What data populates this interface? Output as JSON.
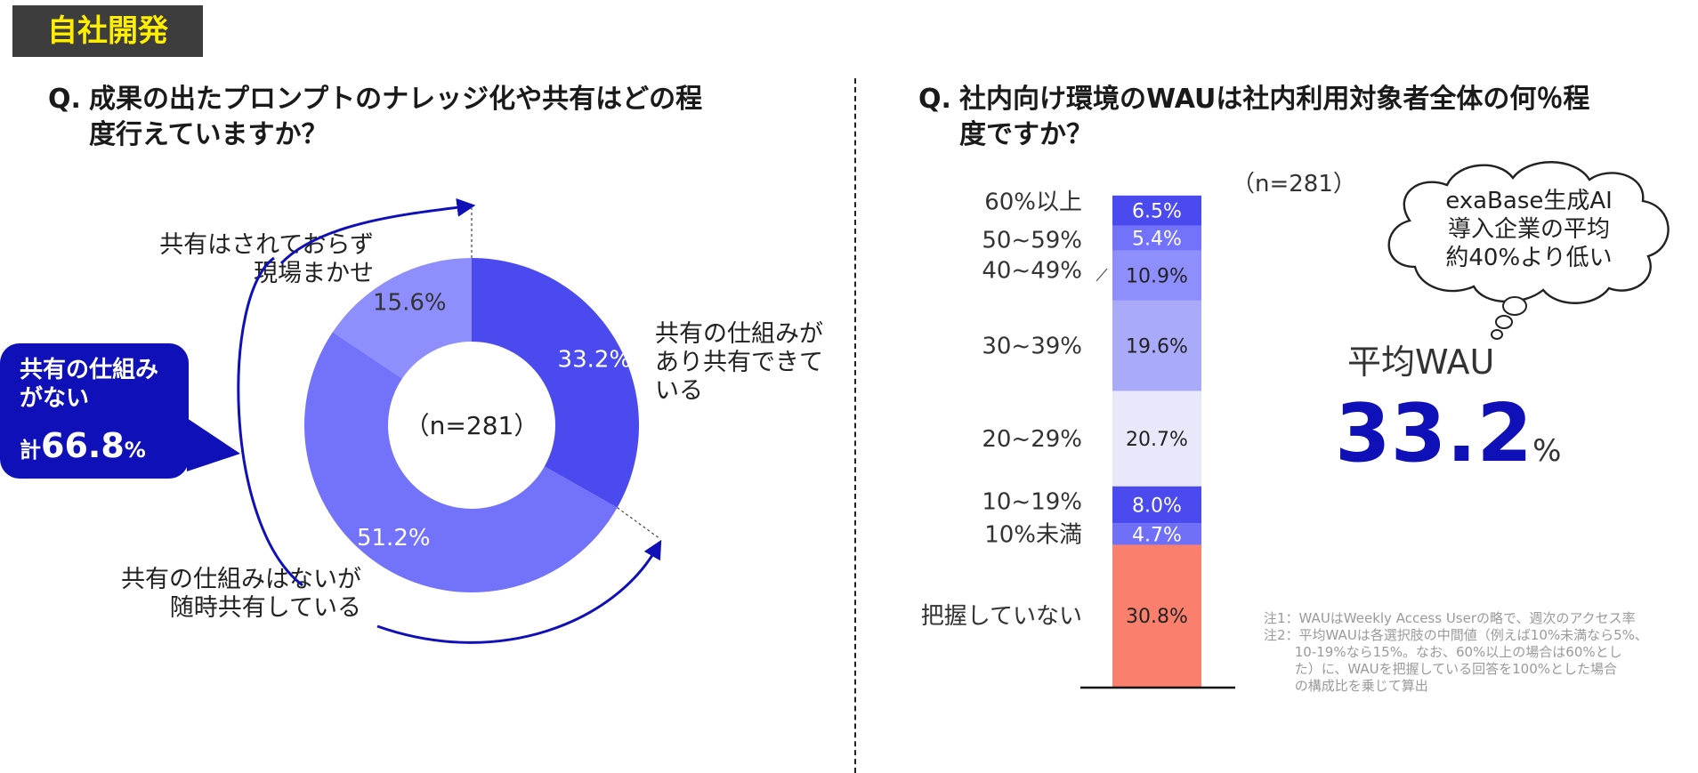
{
  "tag": "自社開発",
  "left": {
    "q_mark": "Q.",
    "title_line1": "成果の出たプロンプトのナレッジ化や共有はどの程",
    "title_line2": "度行えていますか？",
    "n_label": "（n=281）",
    "callout": {
      "line1": "共有の仕組み",
      "line2": "がない",
      "total_prefix": "計",
      "total_value": "66.8",
      "total_unit": "%"
    }
  },
  "right": {
    "q_mark": "Q.",
    "title_line1": "社内向け環境のWAUは社内利用対象者全体の何％程",
    "title_line2": "度ですか？",
    "n_label": "（n=281）",
    "cloud": [
      "exaBase生成AI",
      "導入企業の平均",
      "約40%より低い"
    ],
    "avg_label": "平均WAU",
    "avg_value": "33.2",
    "avg_unit": "%",
    "notes": [
      "注1：WAUはWeekly Access Userの略で、週次のアクセス率",
      "注2：平均WAUは各選択肢の中間値（例えば10%未満なら5%、",
      "　　 10-19%なら15%。なお、60%以上の場合は60%とし",
      "　　 た）に、WAUを把握している回答を100%とした場合",
      "　　 の構成比を乗じて算出"
    ]
  },
  "chart_data": [
    {
      "type": "pie",
      "categories": [
        "共有の仕組みがあり共有できている",
        "共有の仕組みはないが随時共有している",
        "共有はされておらず現場まかせ"
      ],
      "category_lines": [
        [
          "共有の仕組みが",
          "あり共有できて",
          "いる"
        ],
        [
          "共有の仕組みはないが",
          "随時共有している"
        ],
        [
          "共有はされておらず",
          "現場まかせ"
        ]
      ],
      "values": [
        33.2,
        51.2,
        15.6
      ],
      "labels": [
        "33.2%",
        "51.2%",
        "15.6%"
      ],
      "colors": [
        "#4a4aee",
        "#7272fa",
        "#8e8efc"
      ],
      "legend": "none"
    },
    {
      "type": "bar",
      "stacked": true,
      "categories": [
        "把握していない",
        "10%未満",
        "10~19%",
        "20~29%",
        "30~39%",
        "40~49%",
        "50~59%",
        "60%以上"
      ],
      "values": [
        30.8,
        4.7,
        8.0,
        20.7,
        19.6,
        10.9,
        5.4,
        6.5
      ],
      "labels": [
        "30.8%",
        "4.7%",
        "8.0%",
        "20.7%",
        "19.6%",
        "10.9%",
        "5.4%",
        "6.5%"
      ],
      "colors": [
        "#fa7f6c",
        "#6f6ff7",
        "#4a4aee",
        "#e8e8fb",
        "#aaaafa",
        "#8e8efc",
        "#7272fa",
        "#4a4aee"
      ],
      "label_colors": [
        "#222222",
        "#ffffff",
        "#ffffff",
        "#222222",
        "#222222",
        "#222222",
        "#ffffff",
        "#ffffff"
      ],
      "ylim": [
        0,
        100
      ]
    }
  ]
}
